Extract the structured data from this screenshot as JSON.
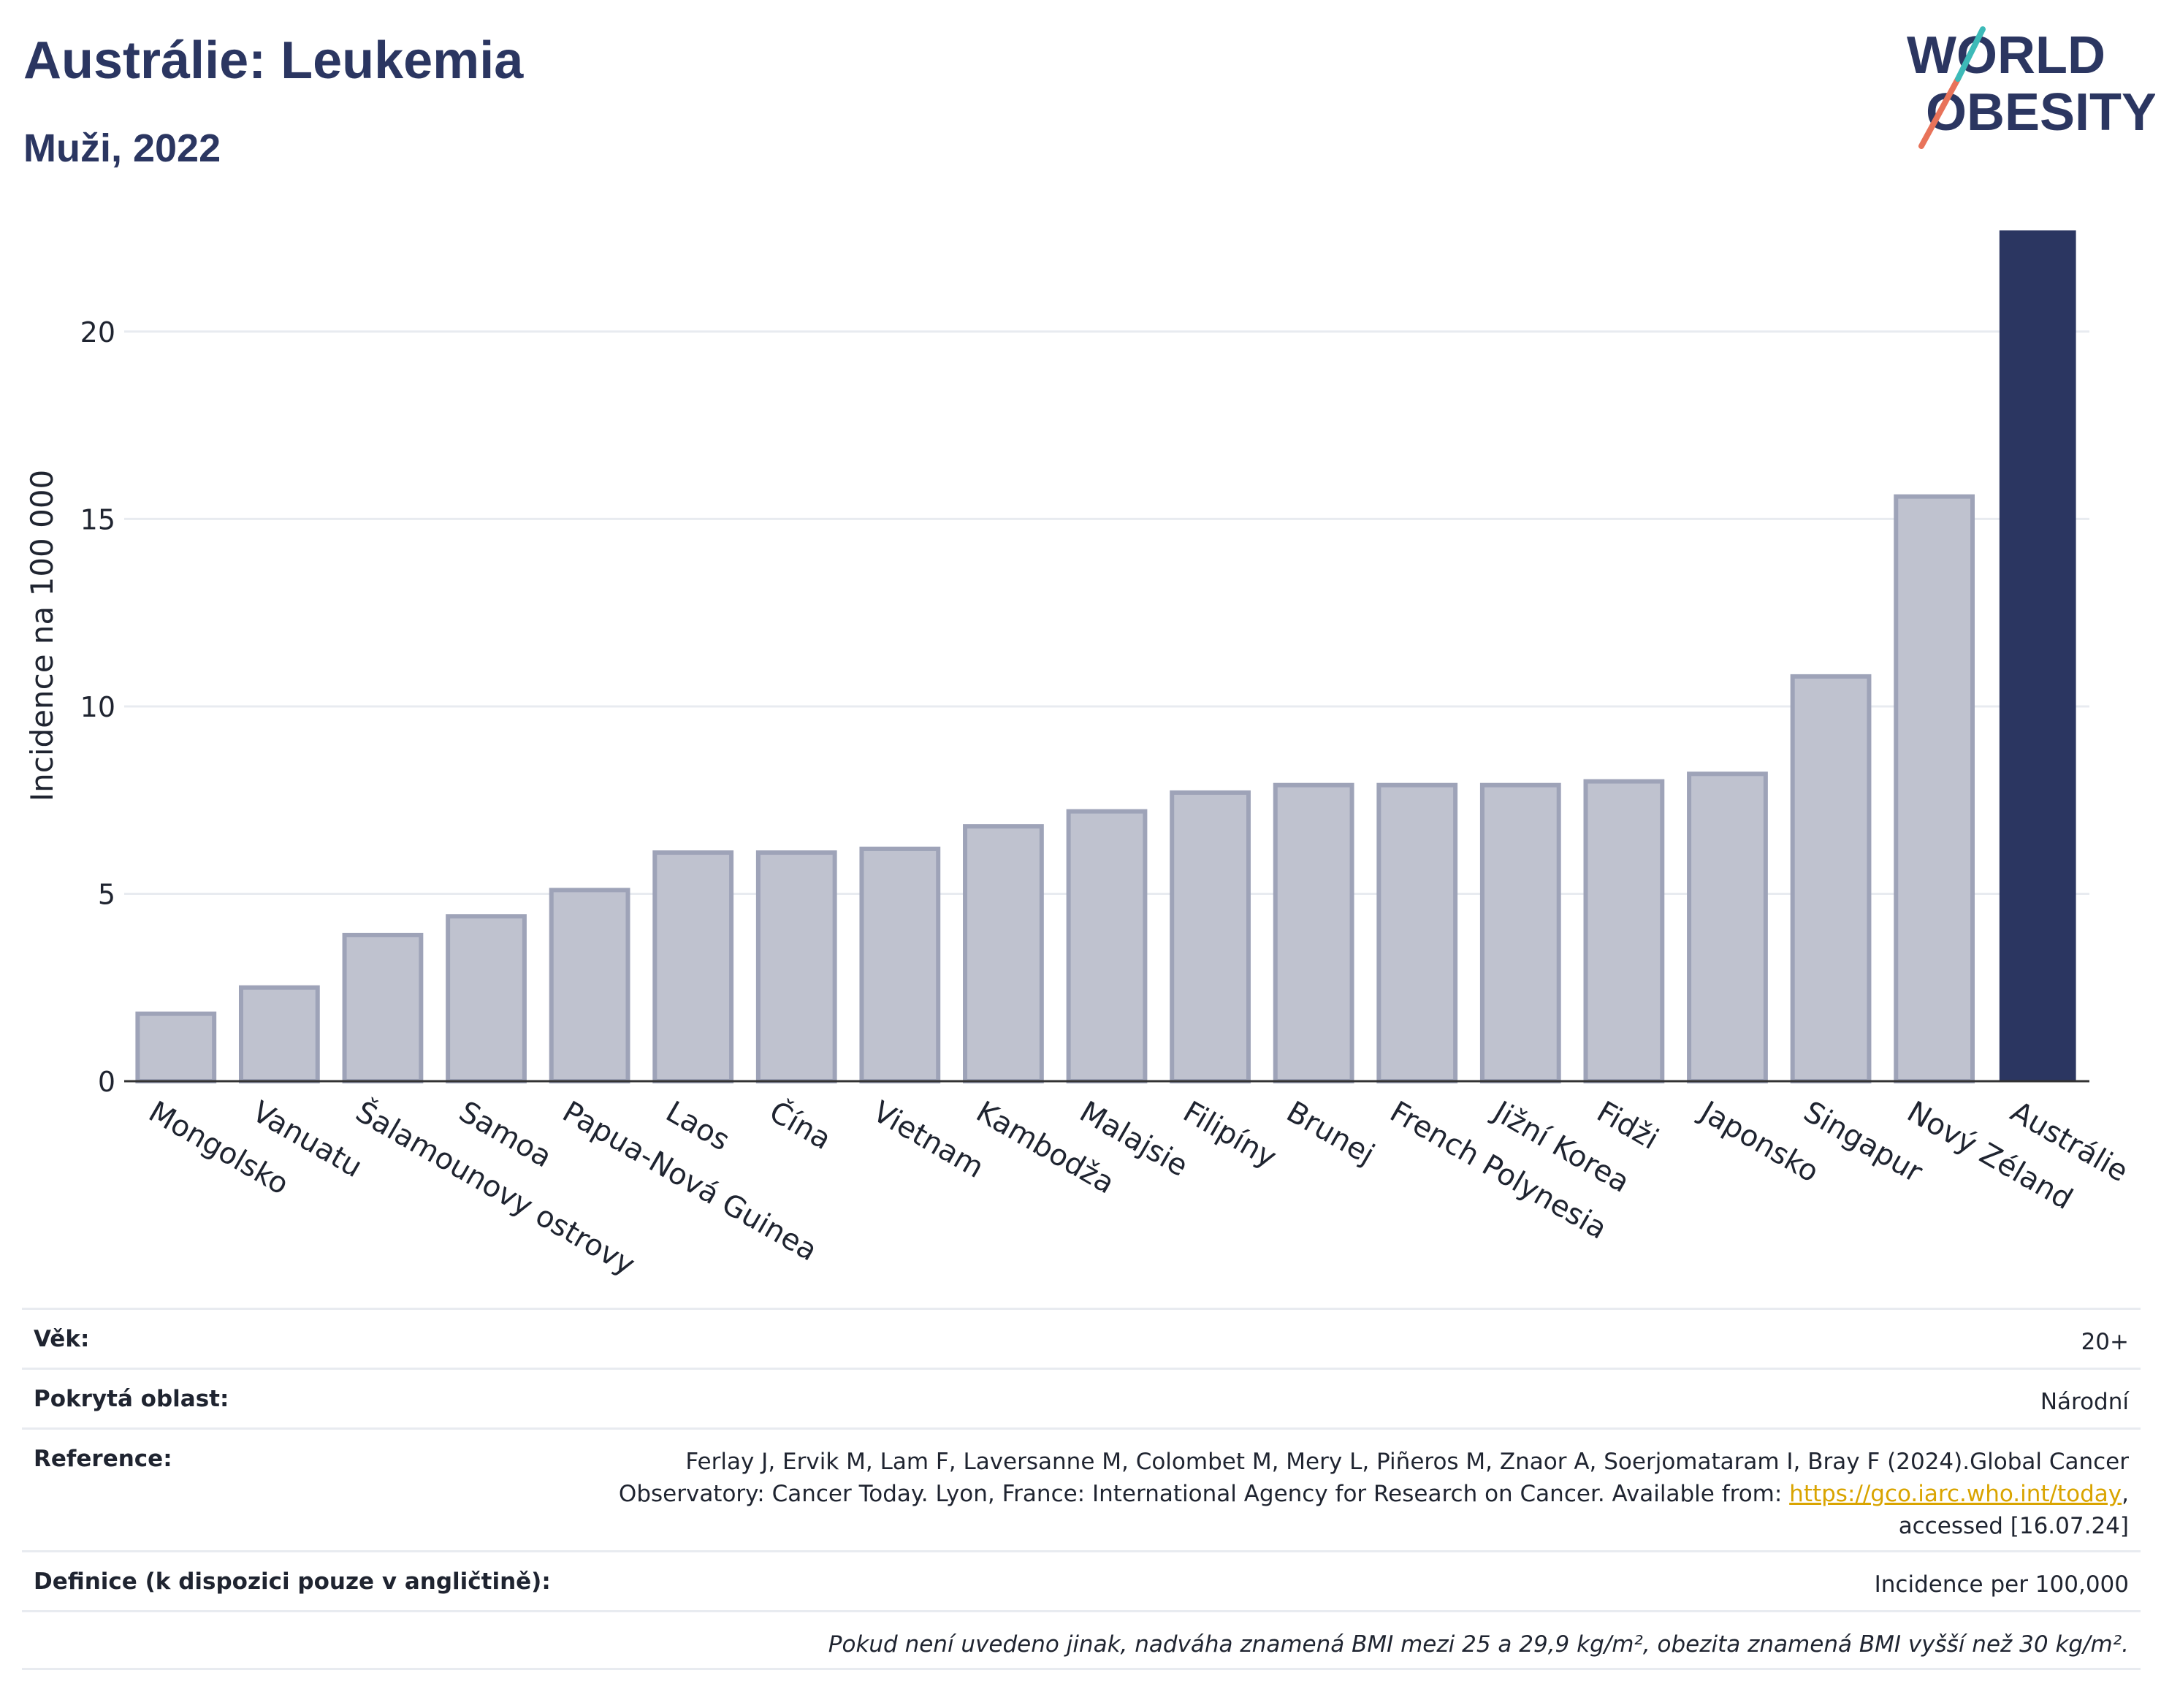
{
  "header": {
    "title": "Austrálie: Leukemia",
    "subtitle": "Muži, 2022"
  },
  "logo": {
    "line1": "WORLD",
    "line2": "OBESITY",
    "icon": "world-obesity-logo"
  },
  "chart_data": {
    "type": "bar",
    "ylabel": "Incidence na 100 000",
    "ylim": [
      0,
      23
    ],
    "yticks": [
      0,
      5,
      10,
      15,
      20
    ],
    "grid": true,
    "categories": [
      "Mongolsko",
      "Vanuatu",
      "Šalamounovy ostrovy",
      "Samoa",
      "Papua-Nová Guinea",
      "Laos",
      "Čína",
      "Vietnam",
      "Kambodža",
      "Malajsie",
      "Filipíny",
      "Brunej",
      "French Polynesia",
      "Jižní Korea",
      "Fidži",
      "Japonsko",
      "Singapur",
      "Nový Zéland",
      "Austrálie"
    ],
    "values": [
      1.8,
      2.5,
      3.9,
      4.4,
      5.1,
      6.1,
      6.1,
      6.2,
      6.8,
      7.2,
      7.7,
      7.9,
      7.9,
      7.9,
      8.0,
      8.2,
      10.8,
      15.6,
      22.7
    ],
    "highlight": "Austrálie",
    "colors": {
      "bar": "#bfc2cf",
      "bar_border": "#9ea3b8",
      "highlight": "#2b3661",
      "grid": "#e8ebf0",
      "axis": "#333333"
    }
  },
  "info": {
    "age_label": "Věk:",
    "age_value": "20+",
    "area_label": "Pokrytá oblast:",
    "area_value": "Národní",
    "ref_label": "Reference:",
    "ref_text_1": "Ferlay J, Ervik M, Lam F, Laversanne M, Colombet M, Mery L, Piñeros M, Znaor A, Soerjomataram I, Bray F (2024).Global Cancer",
    "ref_text_2": "Observatory: Cancer Today. Lyon, France: International Agency for Research on Cancer. Available from: ",
    "ref_link": "https://gco.iarc.who.int/today",
    "ref_text_3": "accessed [16.07.24]",
    "def_label": "Definice (k dispozici pouze v angličtině):",
    "def_value": "Incidence per 100,000",
    "note": "Pokud není uvedeno jinak, nadváha znamená BMI mezi 25 a 29,9 kg/m², obezita znamená BMI vyšší než 30 kg/m²."
  }
}
